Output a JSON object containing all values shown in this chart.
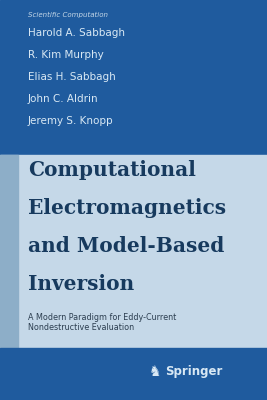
{
  "series_title": "Scientific Computation",
  "authors": [
    "Harold A. Sabbagh",
    "R. Kim Murphy",
    "Elias H. Sabbagh",
    "John C. Aldrin",
    "Jeremy S. Knopp"
  ],
  "main_title_lines": [
    "Computational",
    "Electromagnetics",
    "and Model-Based",
    "Inversion"
  ],
  "subtitle_line1": "A Modern Paradigm for Eddy-Current",
  "subtitle_line2": "Nondestructive Evaluation",
  "publisher": "Springer",
  "top_bg_color": "#1f5b9e",
  "bottom_main_color": "#c5d8e8",
  "bottom_strip_color": "#1f5b9e",
  "left_accent_color": "#8daec8",
  "title_color": "#173a5e",
  "series_color": "#c5d8e8",
  "author_color": "#d8e8f4",
  "subtitle_color": "#2c3e50",
  "publisher_color": "#d8e8f4",
  "fig_width": 2.67,
  "fig_height": 4.0,
  "dpi": 100
}
